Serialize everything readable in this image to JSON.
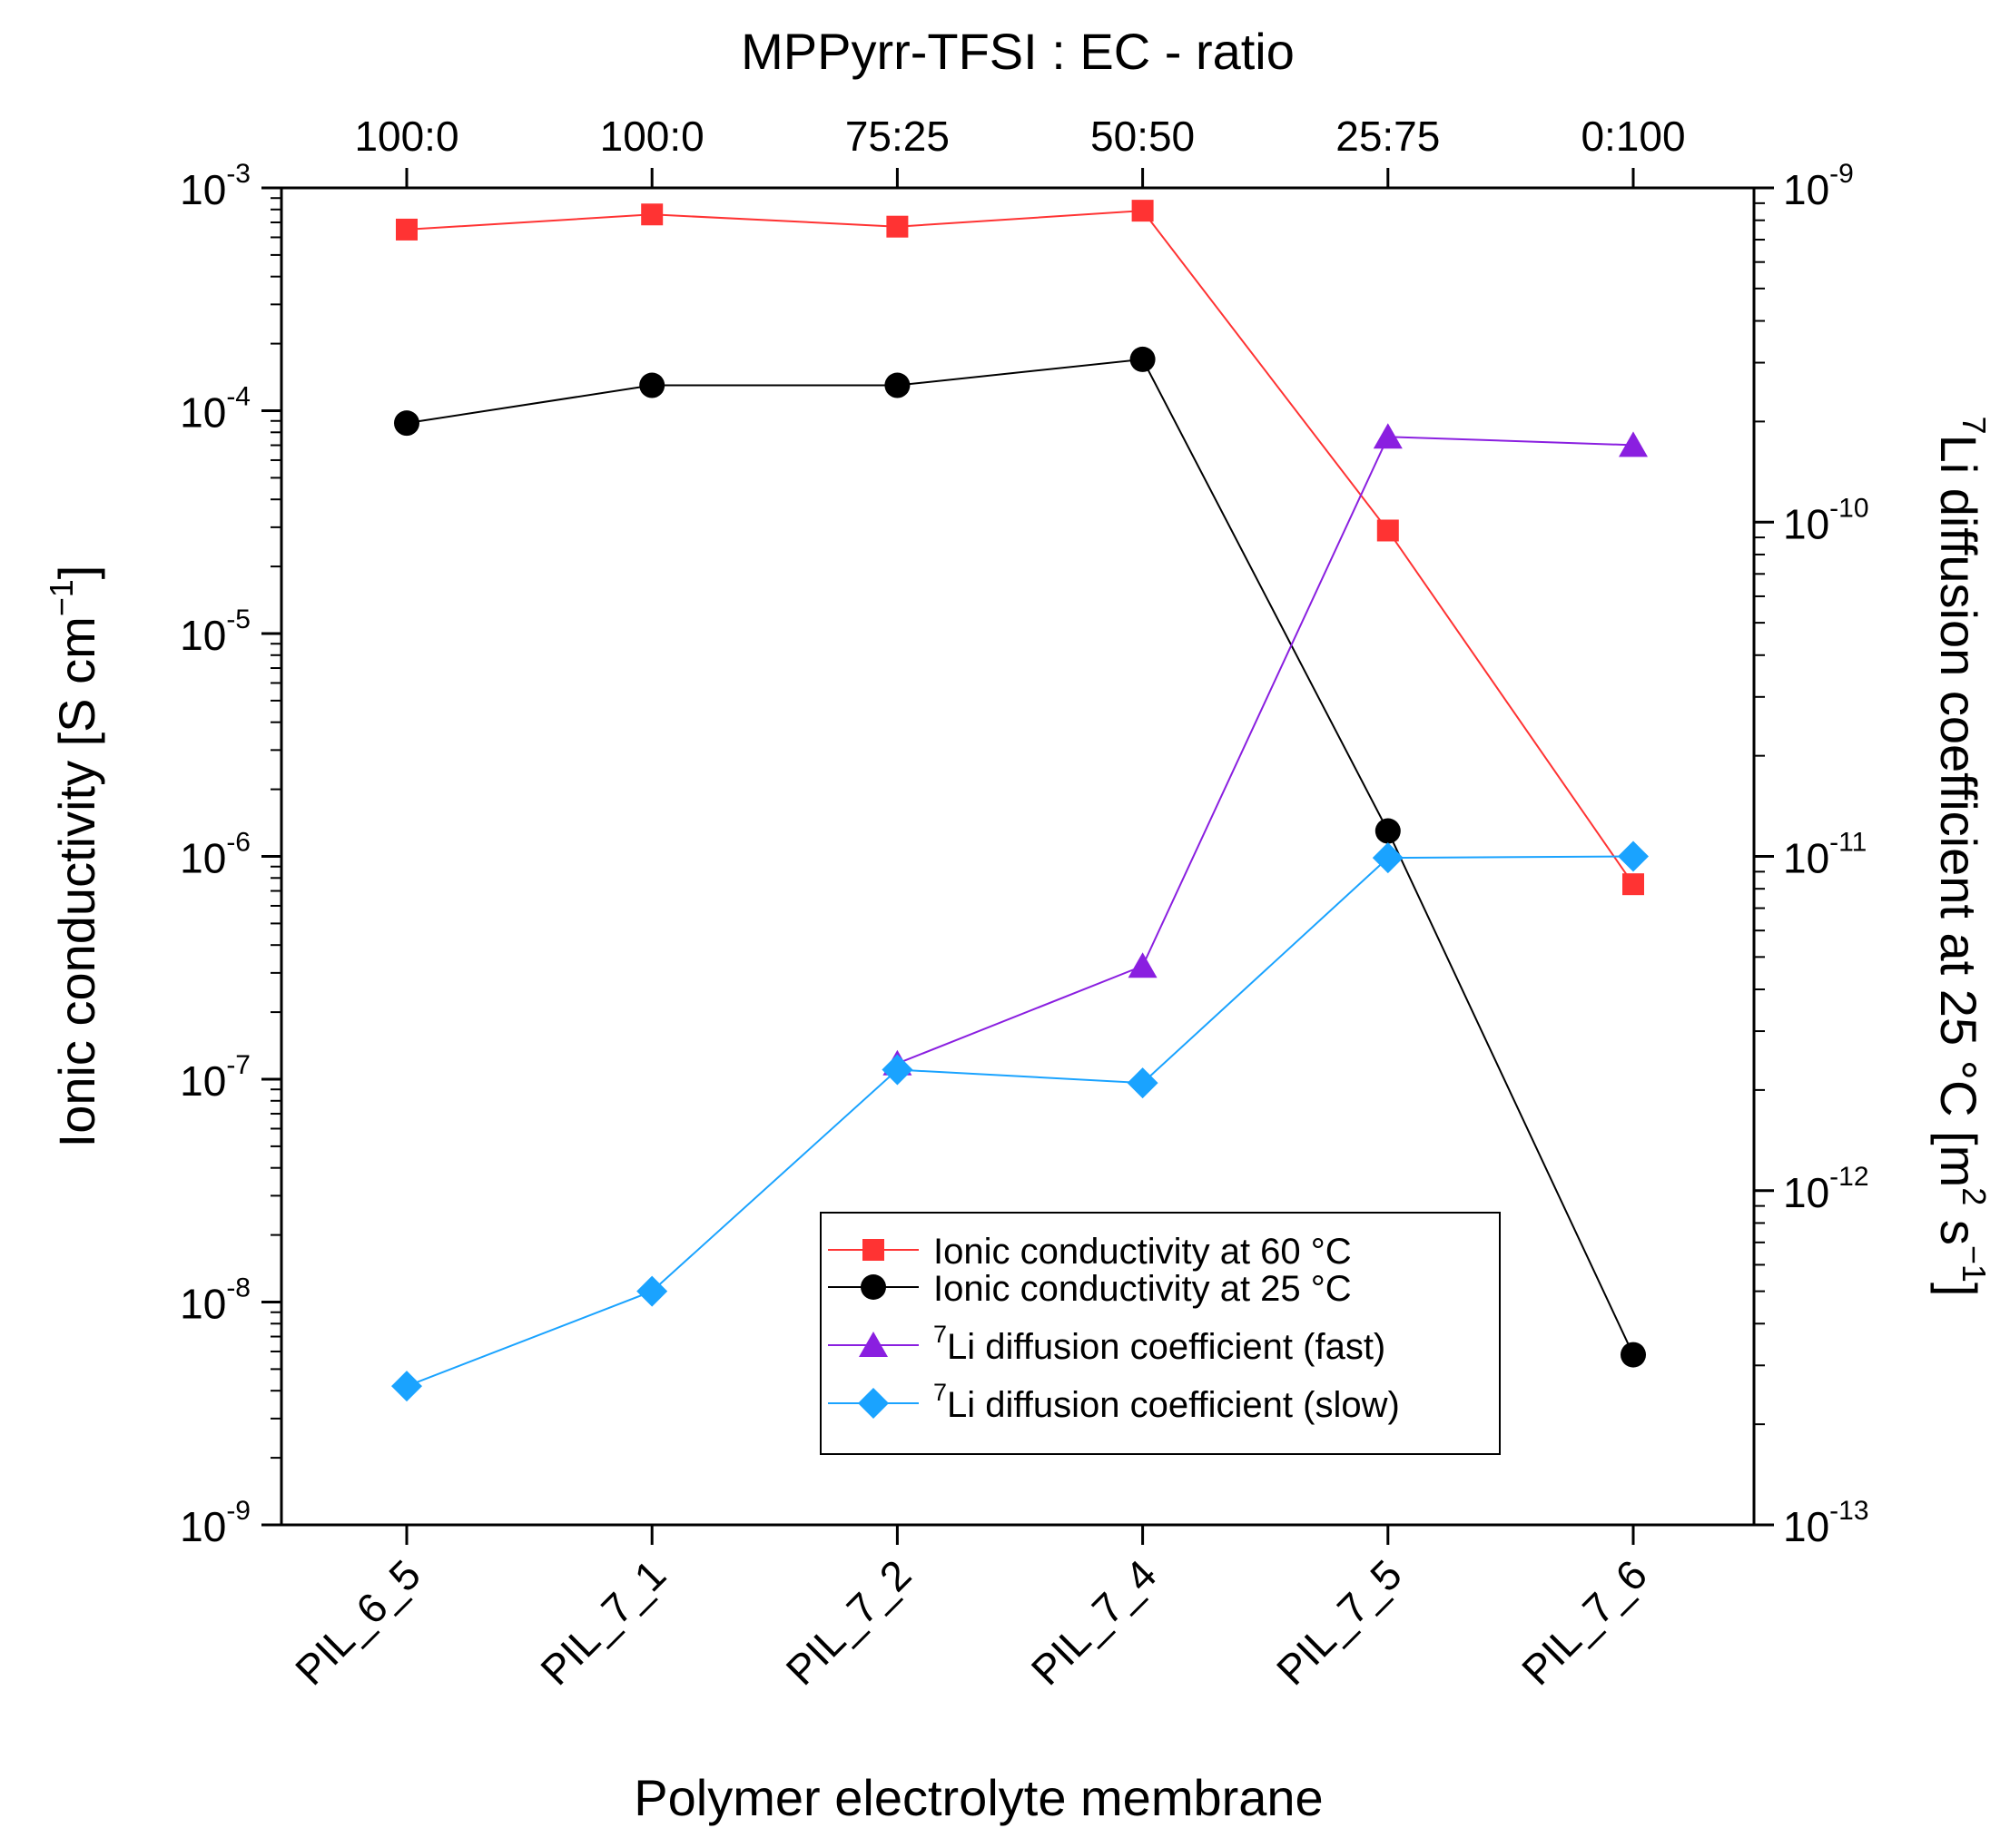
{
  "chart_data": {
    "type": "line",
    "top_axis_title": "MPPyrr-TFSI : EC - ratio",
    "top_tick_labels": [
      "100:0",
      "100:0",
      "75:25",
      "50:50",
      "25:75",
      "0:100"
    ],
    "xlabel": "Polymer electrolyte membrane",
    "categories": [
      "PIL_6_5",
      "PIL_7_1",
      "PIL_7_2",
      "PIL_7_4",
      "PIL_7_5",
      "PIL_7_6"
    ],
    "ylabel_left": {
      "main": "Ionic conductivity [S cm",
      "sup": "−1",
      "end": "]"
    },
    "ylabel_right": {
      "sup_pre": "7",
      "main": "Li diffusion coefficient at 25 °C [m",
      "sup1": "2",
      "mid": " s",
      "sup2": "−1",
      "end": "]"
    },
    "yscale": "log",
    "ylim_left": [
      1e-09,
      0.001
    ],
    "ylim_right": [
      1e-13,
      1e-09
    ],
    "left_ticks": [
      {
        "base": "10",
        "exp": "-3"
      },
      {
        "base": "10",
        "exp": "-4"
      },
      {
        "base": "10",
        "exp": "-5"
      },
      {
        "base": "10",
        "exp": "-6"
      },
      {
        "base": "10",
        "exp": "-7"
      },
      {
        "base": "10",
        "exp": "-8"
      },
      {
        "base": "10",
        "exp": "-9"
      }
    ],
    "right_ticks": [
      {
        "base": "10",
        "exp": "-9"
      },
      {
        "base": "10",
        "exp": "-10"
      },
      {
        "base": "10",
        "exp": "-11"
      },
      {
        "base": "10",
        "exp": "-12"
      },
      {
        "base": "10",
        "exp": "-13"
      }
    ],
    "grid": false,
    "legend_position": "bottom-right",
    "series": [
      {
        "name": "Ionic conductivity at 60 °C",
        "legend_pre": "",
        "legend_text": "Ionic conductivity at 60 °C",
        "axis": "left",
        "marker": "square",
        "color": "#ff3333",
        "values": [
          0.00065,
          0.00076,
          0.00067,
          0.00079,
          2.9e-05,
          7.5e-07
        ]
      },
      {
        "name": "Ionic conductivity at 25 °C",
        "legend_pre": "",
        "legend_text": "Ionic conductivity at 25 °C",
        "axis": "left",
        "marker": "circle",
        "color": "#000000",
        "values": [
          8.8e-05,
          0.00013,
          0.00013,
          0.00017,
          1.3e-06,
          5.8e-09
        ]
      },
      {
        "name": "7Li diffusion coefficient (fast)",
        "legend_pre": "7",
        "legend_text": "Li diffusion coefficient (fast)",
        "axis": "right",
        "marker": "triangle",
        "color": "#8a1fe0",
        "values": [
          null,
          null,
          2.4e-12,
          4.7e-12,
          1.8e-10,
          1.7e-10
        ]
      },
      {
        "name": "7Li diffusion coefficient (slow)",
        "legend_pre": "7",
        "legend_text": "Li diffusion coefficient (slow)",
        "axis": "right",
        "marker": "diamond",
        "color": "#1aa3ff",
        "values": [
          2.6e-13,
          5e-13,
          2.3e-12,
          2.1e-12,
          9.9e-12,
          1e-11
        ]
      }
    ]
  }
}
